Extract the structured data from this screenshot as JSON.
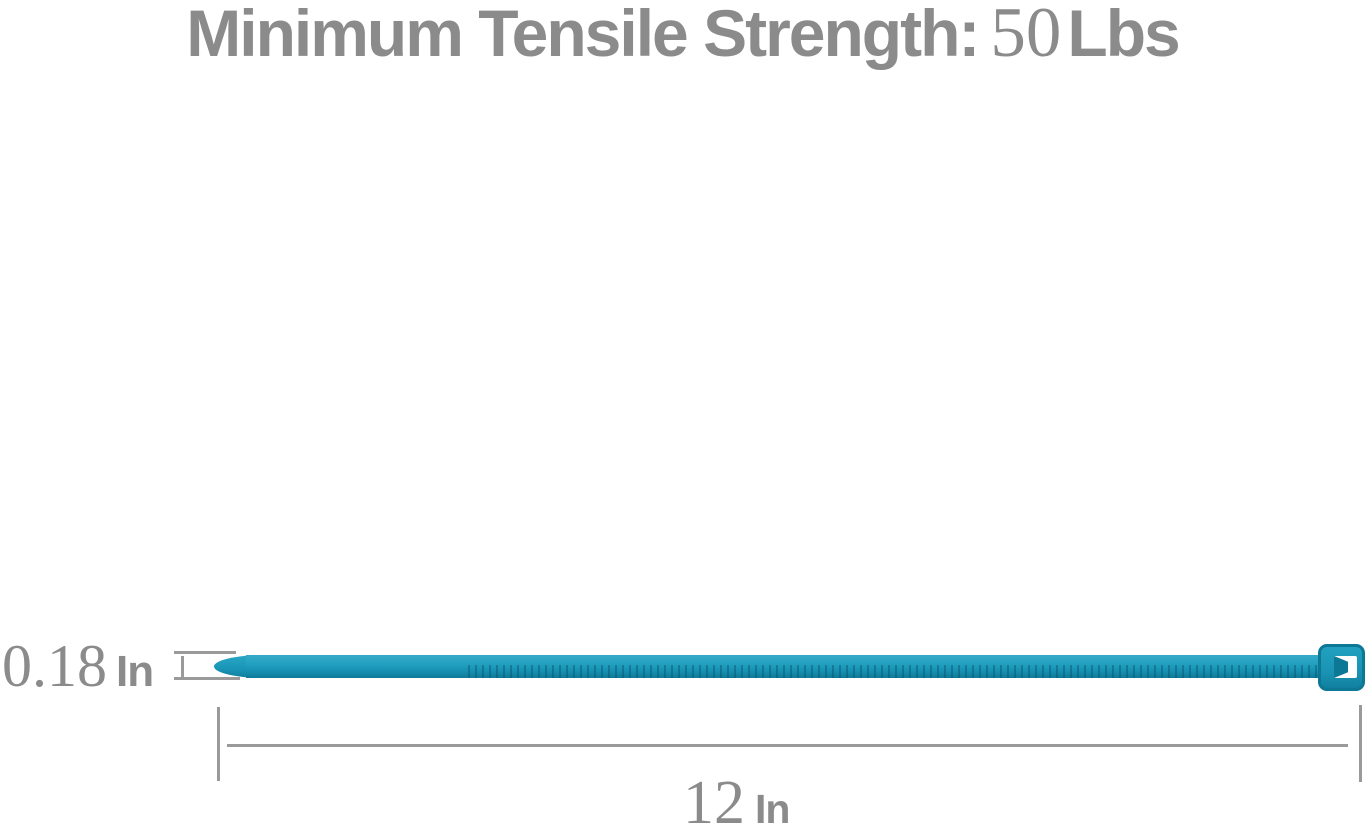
{
  "header": {
    "title_label": "Minimum Tensile Strength:",
    "title_value": "50",
    "title_unit": "Lbs"
  },
  "dimensions": {
    "thickness": {
      "value": "0.18",
      "unit": "In"
    },
    "length": {
      "value": "12",
      "unit": "In"
    }
  },
  "product": {
    "name": "teal nylon cable tie",
    "features": [
      "pointed tip",
      "ribbed strap",
      "locking head with white pawl slot"
    ],
    "colors": {
      "tie_main": "#1f9dbd",
      "tie_highlight": "#36abc8",
      "tie_shadow": "#0f7a99",
      "head_border": "#0d7796",
      "text_gray": "#8b8b8b",
      "dimension_line_gray": "#9a9a9a",
      "background": "#ffffff"
    }
  }
}
